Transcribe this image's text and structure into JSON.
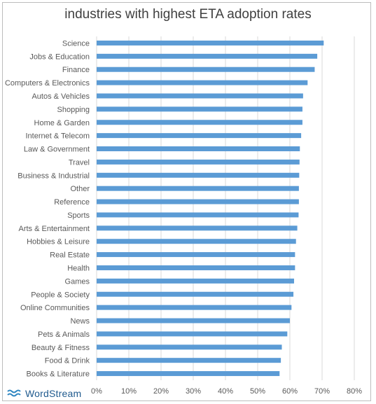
{
  "chart_data": {
    "type": "bar",
    "orientation": "horizontal",
    "title": "industries with highest ETA adoption rates",
    "categories": [
      "Science",
      "Jobs & Education",
      "Finance",
      "Computers & Electronics",
      "Autos & Vehicles",
      "Shopping",
      "Home & Garden",
      "Internet & Telecom",
      "Law & Government",
      "Travel",
      "Business & Industrial",
      "Other",
      "Reference",
      "Sports",
      "Arts & Entertainment",
      "Hobbies & Leisure",
      "Real Estate",
      "Health",
      "Games",
      "People & Society",
      "Online Communities",
      "News",
      "Pets & Animals",
      "Beauty & Fitness",
      "Food & Drink",
      "Books & Literature"
    ],
    "values": [
      70.5,
      68.5,
      67.7,
      65.5,
      64.1,
      63.9,
      63.9,
      63.5,
      63.1,
      63.0,
      62.9,
      62.8,
      62.8,
      62.7,
      62.3,
      61.9,
      61.6,
      61.6,
      61.3,
      61.1,
      60.5,
      60.0,
      59.2,
      57.5,
      57.2,
      56.8
    ],
    "xlim": [
      0,
      80
    ],
    "xticks": [
      "0%",
      "10%",
      "20%",
      "30%",
      "40%",
      "50%",
      "60%",
      "70%",
      "80%"
    ],
    "grid": true,
    "bar_color": "#5b9bd5"
  },
  "logo": {
    "text": "WordStream"
  }
}
